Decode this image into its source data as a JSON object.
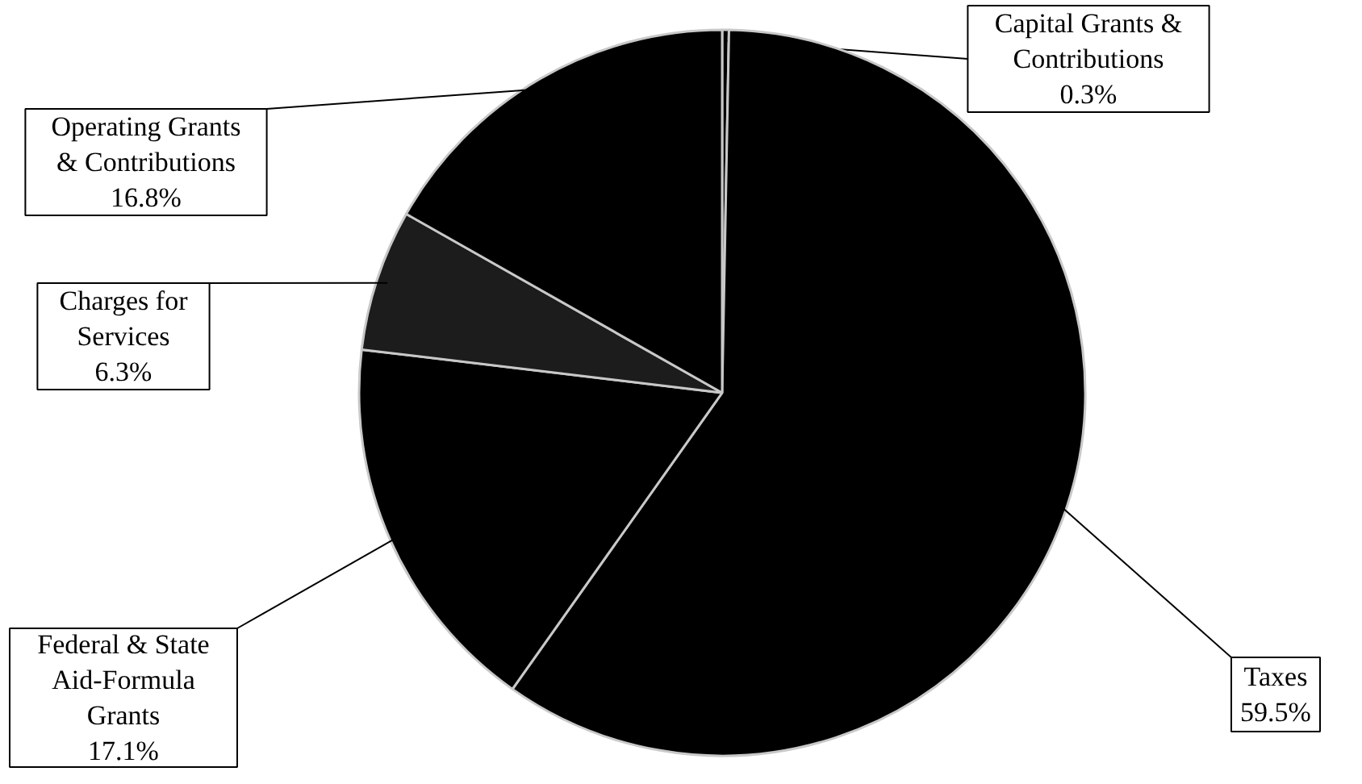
{
  "chart_data": {
    "type": "pie",
    "categories": [
      "Capital Grants & Contributions",
      "Taxes",
      "Federal & State Aid-Formula Grants",
      "Charges for Services",
      "Operating Grants & Contributions"
    ],
    "values": [
      0.3,
      59.5,
      17.1,
      6.3,
      16.8
    ],
    "value_labels": [
      "0.3%",
      "59.5%",
      "17.1%",
      "6.3%",
      "16.8%"
    ],
    "colors": [
      "#000000",
      "#000000",
      "#000000",
      "#1c1c1c",
      "#000000"
    ]
  }
}
